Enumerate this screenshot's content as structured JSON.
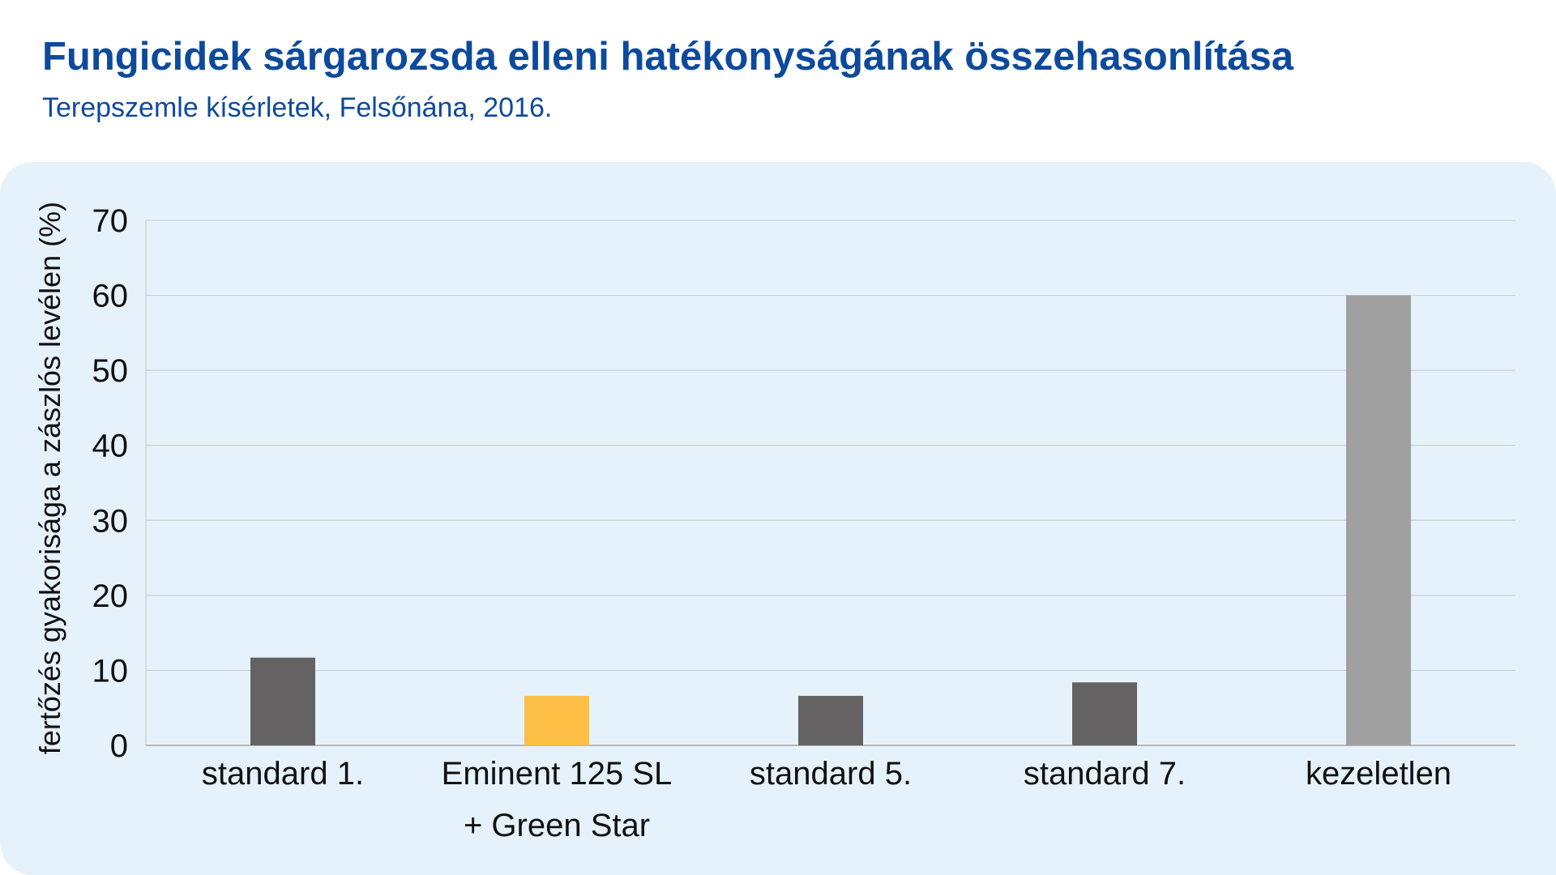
{
  "header": {
    "title": "Fungicidek sárgarozsda elleni hatékonyságának összehasonlítása",
    "subtitle": "Terepszemle kísérletek, Felsőnána, 2016."
  },
  "chart_data": {
    "type": "bar",
    "title": "Fungicidek sárgarozsda elleni hatékonyságának összehasonlítása",
    "subtitle": "Terepszemle kísérletek, Felsőnána, 2016.",
    "xlabel": "",
    "ylabel": "fertőzés gyakorisága a zászlós levélen (%)",
    "ylim": [
      0,
      70
    ],
    "yticks": [
      0,
      10,
      20,
      30,
      40,
      50,
      60,
      70
    ],
    "grid": true,
    "categories": [
      [
        "standard 1."
      ],
      [
        "Eminent 125 SL",
        "+ Green Star"
      ],
      [
        "standard 5."
      ],
      [
        "standard 7."
      ],
      [
        "kezeletlen"
      ]
    ],
    "values": [
      11.7,
      6.6,
      6.6,
      8.4,
      60
    ],
    "colors": [
      "#656263",
      "#fbbf45",
      "#656263",
      "#656263",
      "#a0a0a0"
    ]
  }
}
